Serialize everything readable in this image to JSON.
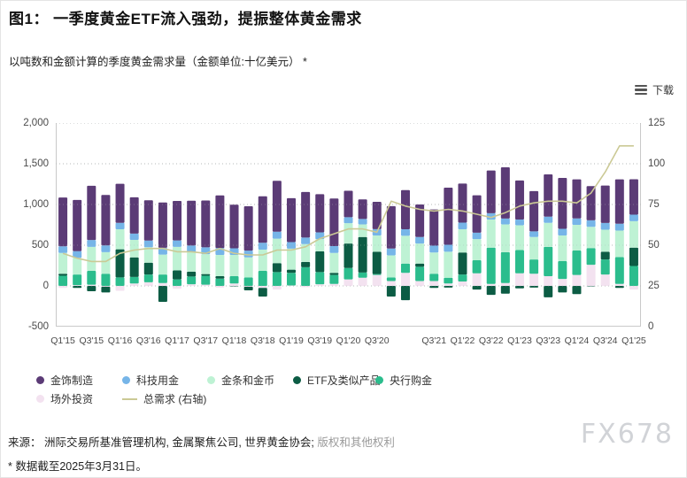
{
  "header": {
    "title": "图1：  一季度黄金ETF流入强劲，提振整体黄金需求",
    "subtitle": "以吨数和金额计算的季度黄金需求量（金额单位:十亿美元） *",
    "download_label": "下载"
  },
  "chart_data": {
    "type": "bar",
    "subtype": "stacked-bars-with-line",
    "categories": [
      "Q1'15",
      "Q2'15",
      "Q3'15",
      "Q4'15",
      "Q1'16",
      "Q2'16",
      "Q3'16",
      "Q4'16",
      "Q1'17",
      "Q2'17",
      "Q3'17",
      "Q4'17",
      "Q1'18",
      "Q2'18",
      "Q3'18",
      "Q4'18",
      "Q1'19",
      "Q2'19",
      "Q3'19",
      "Q4'19",
      "Q1'20",
      "Q2'20",
      "Q3'20",
      "Q4'20",
      "Q1'21",
      "Q2'21",
      "Q3'21",
      "Q4'21",
      "Q1'22",
      "Q2'22",
      "Q3'22",
      "Q4'22",
      "Q1'23",
      "Q2'23",
      "Q3'23",
      "Q4'23",
      "Q1'24",
      "Q2'24",
      "Q3'24",
      "Q4'24",
      "Q1'25"
    ],
    "series": [
      {
        "key": "jewellery",
        "name": "金饰制造",
        "color": "#5B3B76",
        "values": [
          600,
          630,
          665,
          620,
          480,
          445,
          495,
          555,
          485,
          550,
          575,
          645,
          535,
          545,
          570,
          625,
          540,
          560,
          470,
          585,
          325,
          240,
          335,
          520,
          480,
          400,
          445,
          700,
          480,
          460,
          525,
          630,
          480,
          495,
          520,
          625,
          480,
          420,
          460,
          545,
          435
        ]
      },
      {
        "key": "technology",
        "name": "科技用金",
        "color": "#76B5E8",
        "values": [
          81,
          81,
          84,
          82,
          79,
          78,
          82,
          84,
          79,
          81,
          84,
          86,
          82,
          83,
          85,
          86,
          80,
          81,
          82,
          84,
          74,
          67,
          77,
          84,
          81,
          80,
          84,
          86,
          82,
          78,
          77,
          72,
          70,
          70,
          75,
          81,
          79,
          81,
          83,
          84,
          80
        ]
      },
      {
        "key": "bar_coin",
        "name": "金条和金币",
        "color": "#BEF2D4",
        "values": [
          255,
          205,
          295,
          265,
          245,
          215,
          190,
          245,
          290,
          240,
          245,
          260,
          260,
          245,
          260,
          300,
          258,
          218,
          150,
          245,
          250,
          155,
          200,
          270,
          340,
          245,
          260,
          320,
          285,
          260,
          345,
          340,
          305,
          275,
          295,
          315,
          315,
          260,
          270,
          325,
          325
        ]
      },
      {
        "key": "etf",
        "name": "ETF及类似产品",
        "color": "#0C5C44",
        "values": [
          25,
          -25,
          -65,
          -70,
          345,
          240,
          145,
          -195,
          110,
          60,
          20,
          30,
          -5,
          -45,
          -105,
          110,
          40,
          65,
          255,
          25,
          300,
          435,
          275,
          -130,
          -175,
          40,
          -25,
          -20,
          270,
          -45,
          -110,
          -95,
          -30,
          -20,
          -140,
          -80,
          -100,
          -5,
          95,
          -25,
          225
        ]
      },
      {
        "key": "central_banks",
        "name": "央行购金",
        "color": "#2BBD8D",
        "values": [
          125,
          130,
          170,
          150,
          105,
          80,
          95,
          105,
          80,
          95,
          110,
          90,
          90,
          105,
          185,
          170,
          155,
          230,
          150,
          110,
          140,
          65,
          10,
          45,
          115,
          175,
          90,
          70,
          85,
          160,
          445,
          380,
          285,
          175,
          360,
          220,
          300,
          205,
          185,
          330,
          245
        ]
      },
      {
        "key": "otc",
        "name": "场外投资",
        "color": "#F3E2F0",
        "values": [
          -25,
          10,
          15,
          -10,
          -60,
          30,
          45,
          35,
          -35,
          20,
          15,
          -20,
          30,
          -10,
          -25,
          -45,
          5,
          -15,
          20,
          25,
          80,
          100,
          135,
          60,
          160,
          60,
          60,
          30,
          55,
          155,
          25,
          35,
          155,
          150,
          120,
          85,
          135,
          260,
          140,
          25,
          -45
        ]
      }
    ],
    "stack_order": [
      "otc",
      "central_banks",
      "etf",
      "bar_coin",
      "technology",
      "jewellery"
    ],
    "line_series": {
      "name": "总需求 (右轴)",
      "color": "#CBC995",
      "values": [
        45,
        42,
        40,
        40,
        45,
        47,
        48,
        48,
        46,
        46,
        45,
        48,
        45,
        44,
        44,
        47,
        47,
        49,
        54,
        57,
        60,
        60,
        58,
        77,
        74,
        72,
        71,
        72,
        71,
        69,
        67,
        70,
        74,
        76,
        77,
        77,
        76,
        82,
        95,
        111,
        111
      ]
    },
    "left_axis": {
      "min": -500,
      "max": 2000,
      "ticks": [
        {
          "v": 2000,
          "label": "2,000"
        },
        {
          "v": 1500,
          "label": "1,500"
        },
        {
          "v": 1000,
          "label": "1,000"
        },
        {
          "v": 500,
          "label": "500"
        },
        {
          "v": 0,
          "label": "0"
        },
        {
          "v": -500,
          "label": "-500"
        }
      ]
    },
    "right_axis": {
      "min": 0,
      "max": 125,
      "ticks": [
        {
          "v": 125,
          "label": "125"
        },
        {
          "v": 100,
          "label": "100"
        },
        {
          "v": 75,
          "label": "75"
        },
        {
          "v": 50,
          "label": "50"
        },
        {
          "v": 25,
          "label": "25"
        },
        {
          "v": 0,
          "label": "0"
        }
      ]
    },
    "x_ticks": [
      {
        "i": 0,
        "label": "Q1'15"
      },
      {
        "i": 2,
        "label": "Q3'15"
      },
      {
        "i": 4,
        "label": "Q1'16"
      },
      {
        "i": 6,
        "label": "Q3'16"
      },
      {
        "i": 8,
        "label": "Q1'17"
      },
      {
        "i": 10,
        "label": "Q3'17"
      },
      {
        "i": 12,
        "label": "Q1'18"
      },
      {
        "i": 14,
        "label": "Q3'18"
      },
      {
        "i": 16,
        "label": "Q1'19"
      },
      {
        "i": 18,
        "label": "Q3'19"
      },
      {
        "i": 20,
        "label": "Q1'20"
      },
      {
        "i": 22,
        "label": "Q3'20"
      },
      {
        "i": 26,
        "label": "Q3'21"
      },
      {
        "i": 28,
        "label": "Q1'22"
      },
      {
        "i": 30,
        "label": "Q3'22"
      },
      {
        "i": 32,
        "label": "Q1'23"
      },
      {
        "i": 34,
        "label": "Q3'23"
      },
      {
        "i": 36,
        "label": "Q1'24"
      },
      {
        "i": 38,
        "label": "Q3'24"
      },
      {
        "i": 40,
        "label": "Q1'25"
      }
    ],
    "grid": {
      "color": "#bdbdbd",
      "border": "#c9c9c9"
    },
    "legend_position": "bottom"
  },
  "footer": {
    "source_prefix": "来源：",
    "source_text": " 洲际交易所基准管理机构, 金属聚焦公司, 世界黄金协会; ",
    "source_link": "版权和其他权利",
    "note": "* 数据截至2025年3月31日。",
    "watermark": "FX678"
  }
}
